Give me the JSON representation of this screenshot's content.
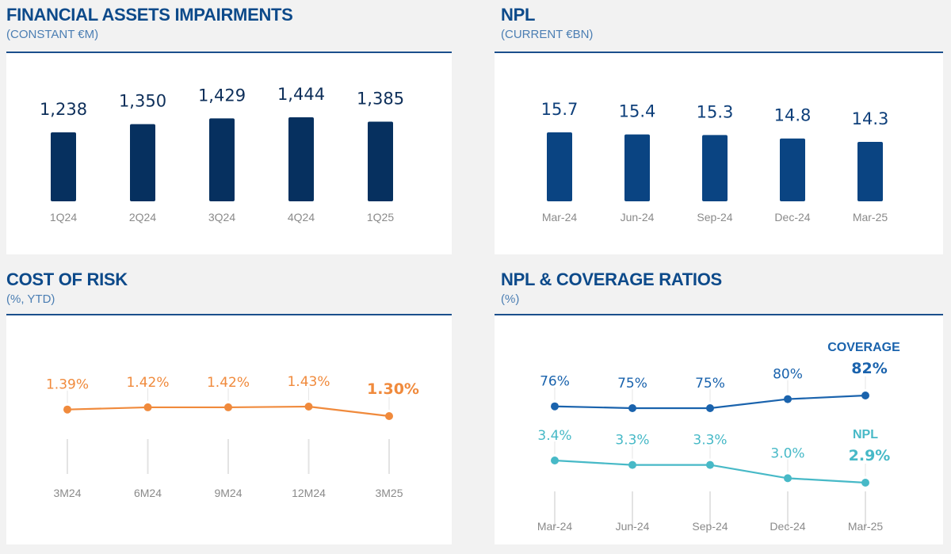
{
  "colors": {
    "title": "#0d4a8a",
    "subtitle": "#4b7eb3",
    "bar_dark": "#06305f",
    "bar_blue": "#0a4482",
    "orange": "#f08a3c",
    "coverage": "#1a63ad",
    "npl": "#47b9c7",
    "tick": "#8a8a8a"
  },
  "chart_data": [
    {
      "id": "impairments",
      "type": "bar",
      "title": "FINANCIAL ASSETS IMPAIRMENTS",
      "subtitle": "(CONSTANT €M)",
      "categories": [
        "1Q24",
        "2Q24",
        "3Q24",
        "4Q24",
        "1Q25"
      ],
      "values": [
        1238,
        1350,
        1429,
        1444,
        1385
      ],
      "labels": [
        "1,238",
        "1,350",
        "1,429",
        "1,444",
        "1,385"
      ],
      "xlabel": "",
      "ylabel": "",
      "ylim": [
        0,
        1444
      ],
      "grid": false
    },
    {
      "id": "npl",
      "type": "bar",
      "title": "NPL",
      "subtitle": "(CURRENT €BN)",
      "categories": [
        "Mar-24",
        "Jun-24",
        "Sep-24",
        "Dec-24",
        "Mar-25"
      ],
      "values": [
        15.7,
        15.4,
        15.3,
        14.8,
        14.3
      ],
      "labels": [
        "15.7",
        "15.4",
        "15.3",
        "14.8",
        "14.3"
      ],
      "xlabel": "",
      "ylabel": "",
      "ylim": [
        0,
        15.7
      ],
      "grid": false
    },
    {
      "id": "cost_of_risk",
      "type": "line",
      "title": "COST OF RISK",
      "subtitle": "(%, YTD)",
      "categories": [
        "3M24",
        "6M24",
        "9M24",
        "12M24",
        "3M25"
      ],
      "series": [
        {
          "name": "Cost of risk",
          "values": [
            1.39,
            1.42,
            1.42,
            1.43,
            1.3
          ],
          "labels": [
            "1.39%",
            "1.42%",
            "1.42%",
            "1.43%",
            "1.30%"
          ]
        }
      ],
      "xlabel": "",
      "ylabel": "",
      "grid": false
    },
    {
      "id": "ratios",
      "type": "line",
      "title": "NPL & COVERAGE RATIOS",
      "subtitle": "(%)",
      "categories": [
        "Mar-24",
        "Jun-24",
        "Sep-24",
        "Dec-24",
        "Mar-25"
      ],
      "series": [
        {
          "name": "COVERAGE",
          "values": [
            76,
            75,
            75,
            80,
            82
          ],
          "labels": [
            "76%",
            "75%",
            "75%",
            "80%",
            "82%"
          ]
        },
        {
          "name": "NPL",
          "values": [
            3.4,
            3.3,
            3.3,
            3.0,
            2.9
          ],
          "labels": [
            "3.4%",
            "3.3%",
            "3.3%",
            "3.0%",
            "2.9%"
          ]
        }
      ],
      "legend": "right, inline above last point",
      "xlabel": "",
      "ylabel": "",
      "grid": false
    }
  ]
}
